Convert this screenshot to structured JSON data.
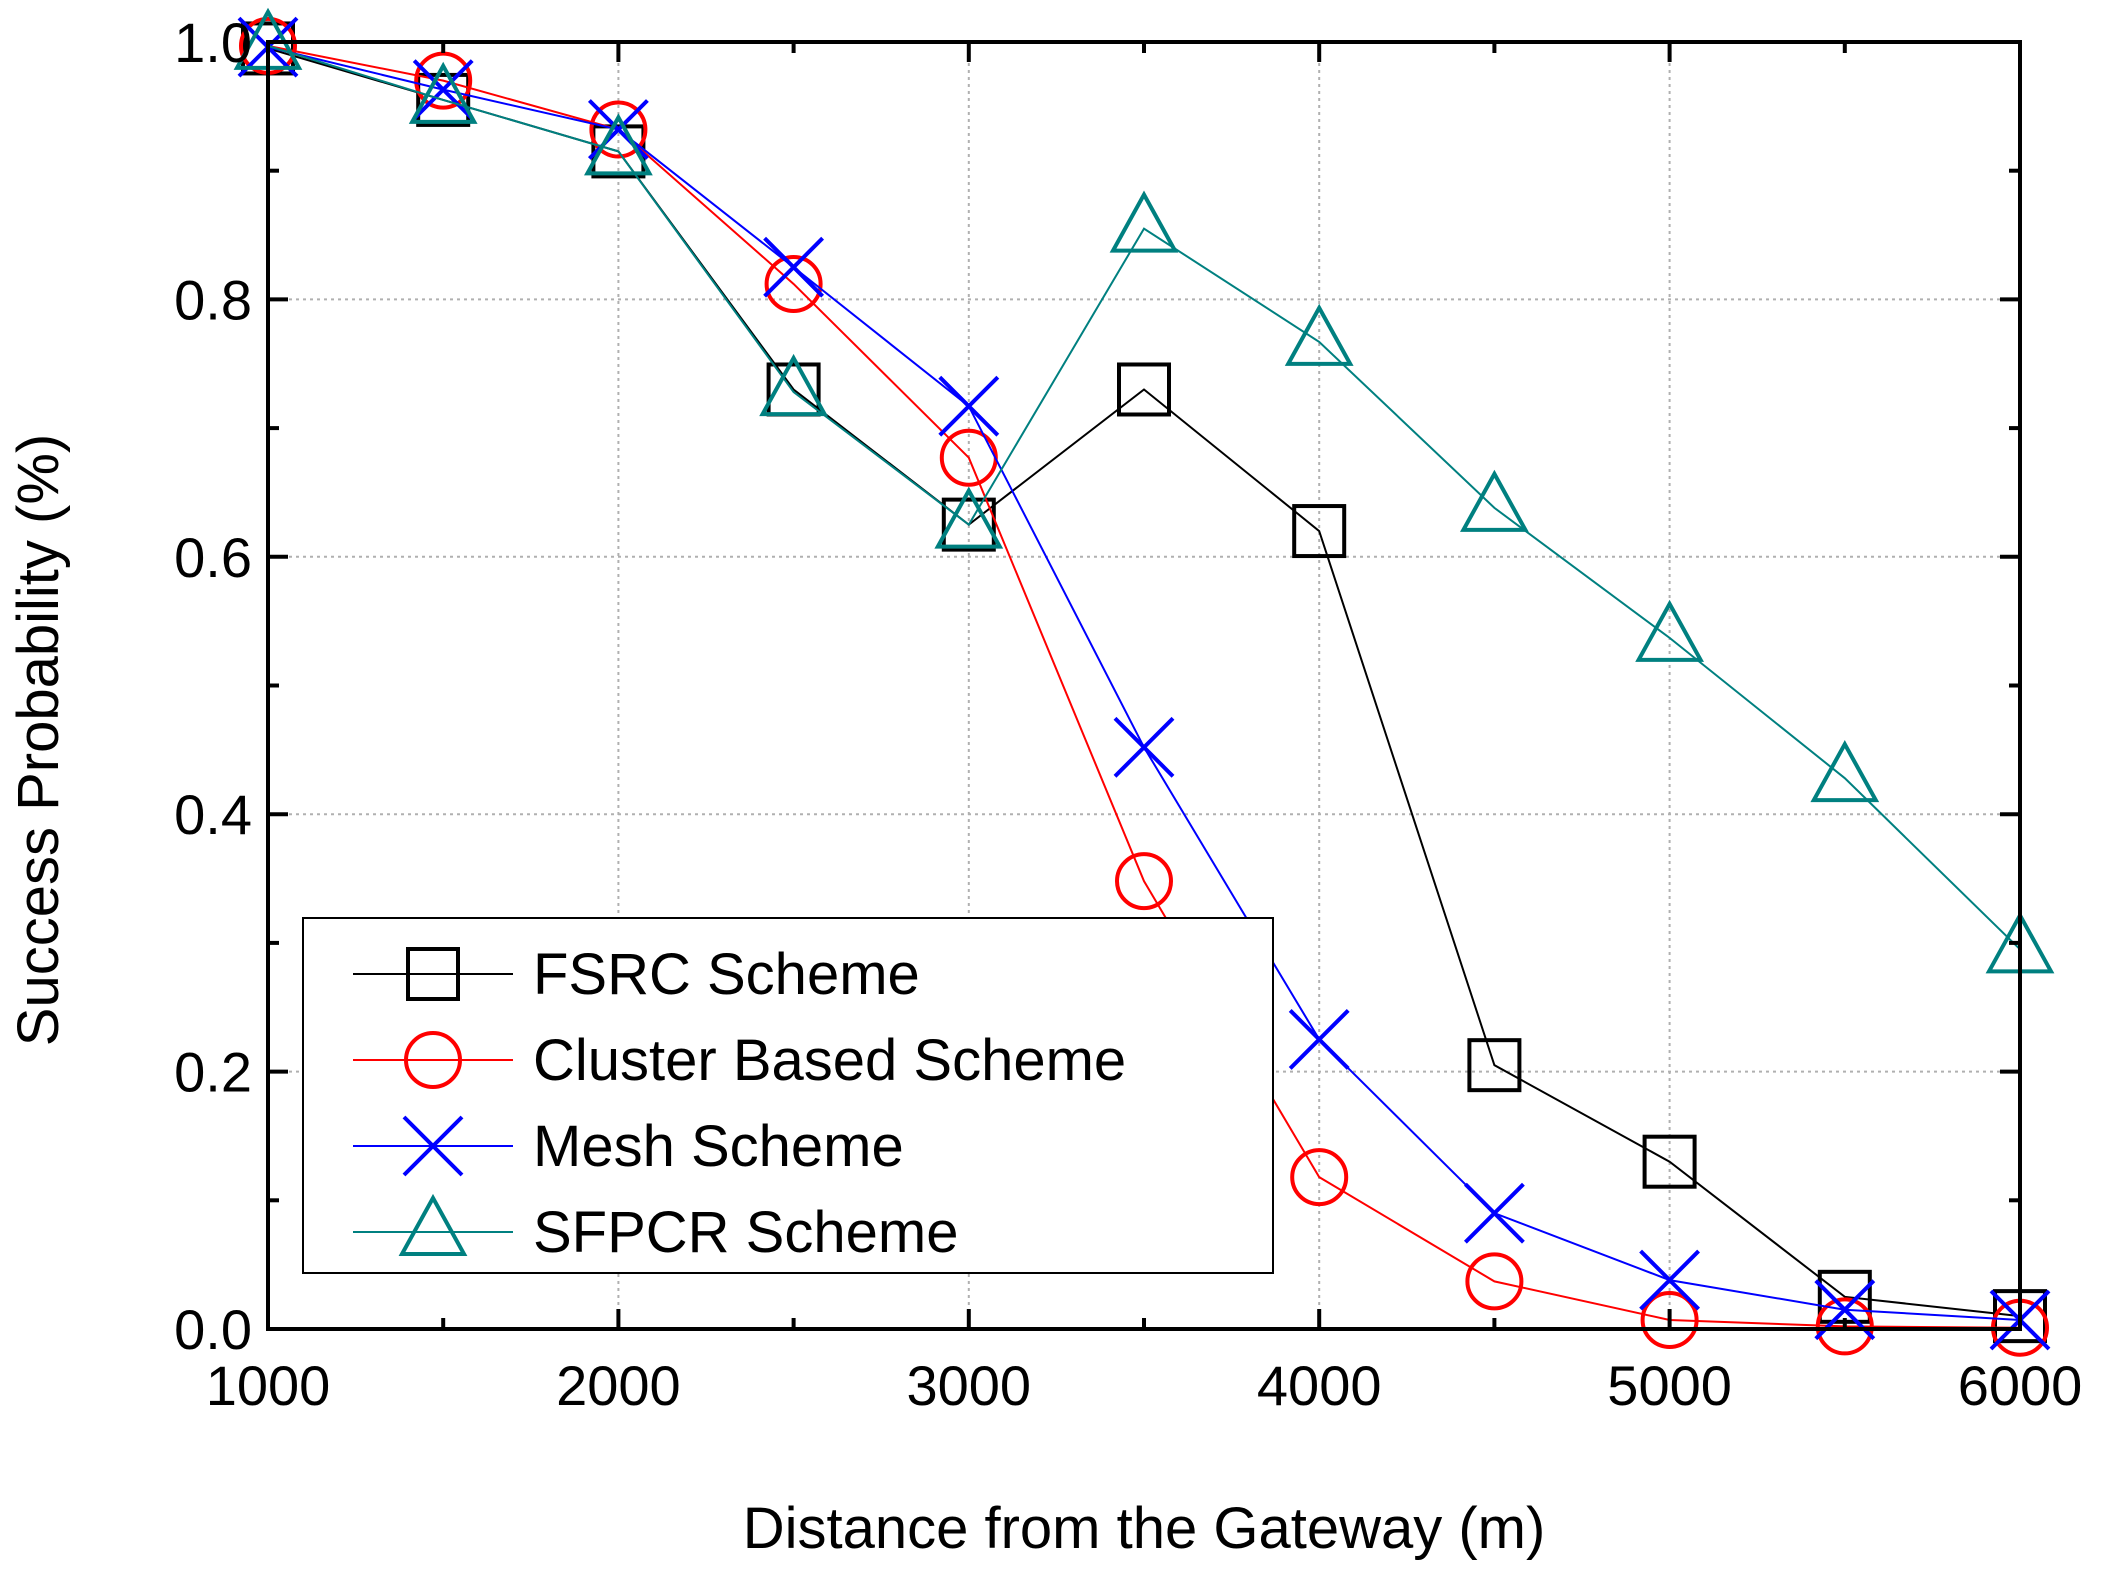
{
  "chart_data": {
    "type": "line",
    "title": "",
    "xlabel": "Distance from the Gateway (m)",
    "ylabel": "Success Probability (%)",
    "xlim": [
      1000,
      6000
    ],
    "ylim": [
      0.0,
      1.0
    ],
    "x_ticks": [
      1000,
      2000,
      3000,
      4000,
      5000,
      6000
    ],
    "x_tick_labels": [
      "1000",
      "2000",
      "3000",
      "4000",
      "5000",
      "6000"
    ],
    "y_ticks": [
      0.0,
      0.2,
      0.4,
      0.6,
      0.8,
      1.0
    ],
    "y_tick_labels": [
      "0.0",
      "0.2",
      "0.4",
      "0.6",
      "0.8",
      "1.0"
    ],
    "grid": true,
    "legend_position": "bottom-left",
    "x": [
      1000,
      1500,
      2000,
      2500,
      3000,
      3500,
      4000,
      4500,
      5000,
      5500,
      6000
    ],
    "series": [
      {
        "name": "FSRC Scheme",
        "marker": "square",
        "color": "#000000",
        "values": [
          0.995,
          0.955,
          0.915,
          0.73,
          0.625,
          0.73,
          0.62,
          0.205,
          0.13,
          0.025,
          0.01
        ]
      },
      {
        "name": "Cluster Based Scheme",
        "marker": "circle",
        "color": "#ff0000",
        "values": [
          0.997,
          0.97,
          0.932,
          0.812,
          0.677,
          0.348,
          0.118,
          0.037,
          0.007,
          0.002,
          0.001
        ]
      },
      {
        "name": "Mesh Scheme",
        "marker": "x",
        "color": "#0000ff",
        "values": [
          0.996,
          0.963,
          0.932,
          0.825,
          0.717,
          0.452,
          0.225,
          0.09,
          0.038,
          0.015,
          0.007
        ]
      },
      {
        "name": "SFPCR Scheme",
        "marker": "triangle",
        "color": "#008080",
        "values": [
          0.997,
          0.955,
          0.915,
          0.728,
          0.625,
          0.855,
          0.767,
          0.638,
          0.537,
          0.428,
          0.295
        ]
      }
    ]
  }
}
